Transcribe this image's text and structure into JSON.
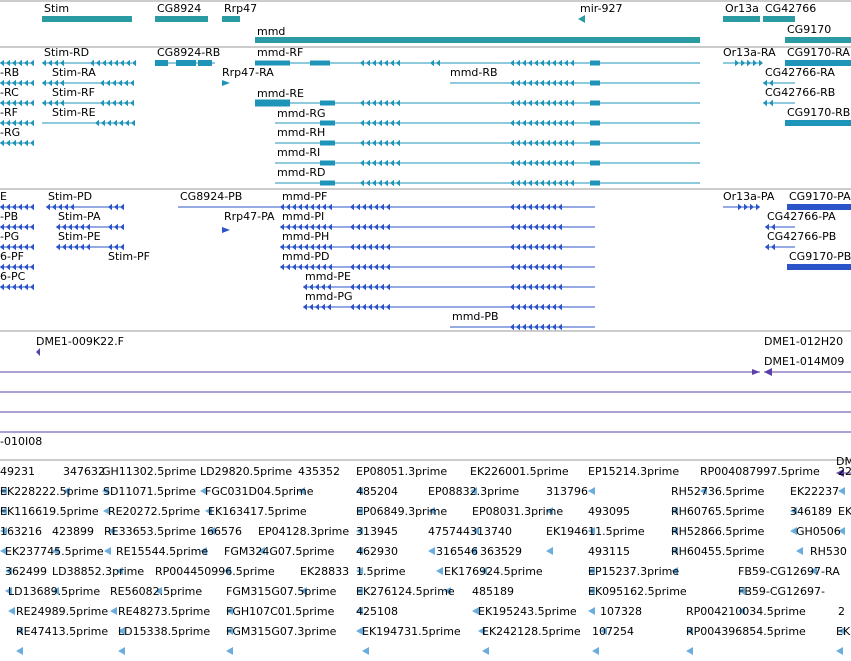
{
  "colors": {
    "gene": "#2a9aa3",
    "transcript": "#1e94b8",
    "cdna": "#2b54c9",
    "clone": "#5a40a8",
    "est": "#6aaee0",
    "divider": "#9a9a9a",
    "background": "#ffffff"
  },
  "tracks": {
    "genes": {
      "labels": [
        "Stim",
        "CG8924",
        "Rrp47",
        "mmd",
        "mir-927",
        "Or13a",
        "CG42766",
        "CG9170"
      ]
    },
    "transcripts": {
      "labels": [
        "-RB",
        "-RC",
        "-RF",
        "-RG",
        "Stim-RD",
        "Stim-RA",
        "Stim-RF",
        "Stim-RE",
        "CG8924-RB",
        "Rrp47-RA",
        "mmd-RF",
        "mmd-RE",
        "mmd-RG",
        "mmd-RH",
        "mmd-RI",
        "mmd-RD",
        "mmd-RB",
        "Or13a-RA",
        "CG9170-RA",
        "CG42766-RA",
        "CG42766-RB",
        "CG9170-RB"
      ]
    },
    "cdna": {
      "labels": [
        "E",
        "-PB",
        "-PG",
        "6-PF",
        "6-PC",
        "Stim-PD",
        "Stim-PA",
        "Stim-PE",
        "Stim-PF",
        "CG8924-PB",
        "Rrp47-PA",
        "mmd-PF",
        "mmd-PI",
        "mmd-PH",
        "mmd-PD",
        "mmd-PE",
        "mmd-PG",
        "mmd-PB",
        "Or13a-PA",
        "CG9170-PA",
        "CG42766-PA",
        "CG42766-PB",
        "CG9170-PB"
      ]
    },
    "clones": {
      "labels": [
        "DME1-009K22.F",
        "DME1-012H20",
        "DME1-014M09",
        "-010I08",
        "DM"
      ]
    },
    "ests": {
      "labels": [
        "49231",
        "347632",
        "GH11302.5prime",
        "LD29820.5prime",
        "435352",
        "EP08051.3prime",
        "EK226001.5prime",
        "EP15214.3prime",
        "RP004087997.5prime",
        "22",
        "EK228222.5prime",
        "SD11071.5prime",
        "FGC031D04.5prime",
        "485204",
        "EP08832.3prime",
        "313796",
        "RH52736.5prime",
        "EK22237",
        "EK116619.5prime",
        "RE20272.5prime",
        "EK163417.5prime",
        "EP06849.3prime",
        "EP08031.3prime",
        "493095",
        "RH60765.5prime",
        "346189",
        "EK",
        "163216",
        "423899",
        "RE33653.5prime",
        "166576",
        "EP04128.3prime",
        "313945",
        "475744",
        "313740",
        "EK194611.5prime",
        "RH52866.5prime",
        "GH0506",
        "EK237745.5prime",
        "RE15544.5prime",
        "FGM324G07.5prime",
        "462930",
        "316546",
        "363529",
        "493115",
        "RH60455.5prime",
        "RH530",
        "362499",
        "LD38852.3prime",
        "RP004450996.5prime",
        "EK28833",
        "1.5prime",
        "EK176924.5prime",
        "EP15237.3prime",
        "FB59-CG12697-RA",
        "LD13689.5prime",
        "RE56082.5prime",
        "FGM315G07.5prime",
        "EK276124.5prime",
        "485189",
        "EK095162.5prime",
        "FB59-CG12697-",
        "RE24989.5prime",
        "RE48273.5prime",
        "FGH107C01.5prime",
        "425108",
        "EK195243.5prime",
        "107328",
        "RP004210034.5prime",
        "2",
        "RE47413.5prime",
        "LD15338.5prime",
        "FGM315G07.3prime",
        "EK194731.5prime",
        "EK242128.5prime",
        "107254",
        "RP004396854.5prime",
        "EK"
      ]
    }
  }
}
